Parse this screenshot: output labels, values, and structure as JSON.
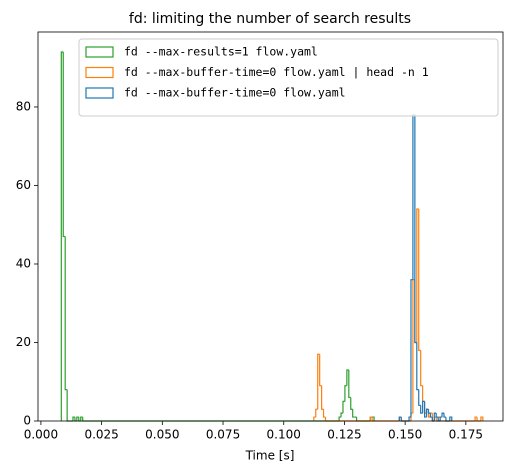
{
  "chart_data": {
    "type": "histogram",
    "title": "fd: limiting the number of search results",
    "xlabel": "Time [s]",
    "xlim": [
      -0.0012,
      0.1903
    ],
    "ylim": [
      0,
      99.1
    ],
    "xticks": [
      {
        "value": 0,
        "label": "0.000"
      },
      {
        "value": 0.025,
        "label": "0.025"
      },
      {
        "value": 0.05,
        "label": "0.050"
      },
      {
        "value": 0.075,
        "label": "0.075"
      },
      {
        "value": 0.1,
        "label": "0.100"
      },
      {
        "value": 0.125,
        "label": "0.125"
      },
      {
        "value": 0.15,
        "label": "0.150"
      },
      {
        "value": 0.175,
        "label": "0.175"
      }
    ],
    "yticks": [
      0,
      20,
      40,
      60,
      80
    ],
    "legend": "upper right",
    "series": [
      {
        "name": "fd --max-results=1 flow.yaml",
        "color": "#2ca02c",
        "bins": [
          0.0084,
          0.0092,
          0.01,
          0.0108,
          0.0116,
          0.0124,
          0.0132,
          0.014,
          0.0148,
          0.0156,
          0.0164,
          0.0172,
          0.1228,
          0.1236,
          0.1244,
          0.1252,
          0.126,
          0.1268,
          0.1276,
          0.1284,
          0.1292,
          0.13,
          0.1356,
          0.1364,
          0.1372
        ],
        "values": [
          94,
          47,
          8,
          0,
          0,
          0,
          1,
          0,
          1,
          0,
          1,
          0,
          1,
          2,
          5,
          9,
          13,
          6,
          3,
          1,
          1,
          0,
          1,
          1
        ]
      },
      {
        "name": "fd --max-buffer-time=0 flow.yaml | head -n 1",
        "color": "#ff7f0e",
        "bins": [
          0.1124,
          0.1132,
          0.114,
          0.1148,
          0.1156,
          0.1164,
          0.1172,
          0.1356,
          0.1364,
          0.1476,
          0.1484,
          0.1524,
          0.1532,
          0.154,
          0.1548,
          0.1556,
          0.1564,
          0.1572,
          0.158,
          0.1588,
          0.1596,
          0.1604,
          0.1612,
          0.162,
          0.1628,
          0.1636,
          0.1644,
          0.1788,
          0.1796,
          0.1812,
          0.182
        ],
        "values": [
          1,
          3,
          17,
          9,
          3,
          1,
          0,
          1,
          0,
          1,
          0,
          2,
          36,
          20,
          54,
          18,
          9,
          5,
          2,
          3,
          1,
          2,
          0,
          1,
          0,
          1,
          0,
          1,
          0,
          1
        ]
      },
      {
        "name": "fd --max-buffer-time=0 flow.yaml",
        "color": "#1f77b4",
        "bins": [
          0.1476,
          0.1484,
          0.1516,
          0.1524,
          0.1532,
          0.154,
          0.1548,
          0.1556,
          0.1564,
          0.1572,
          0.158,
          0.1588,
          0.1596,
          0.1604,
          0.1612,
          0.162,
          0.1628,
          0.1636,
          0.1644,
          0.1652,
          0.166,
          0.1668,
          0.1676,
          0.1684,
          0.1692
        ],
        "values": [
          1,
          0,
          1,
          36,
          78,
          20,
          8,
          4,
          2,
          5,
          1,
          3,
          2,
          1,
          0,
          2,
          1,
          0,
          1,
          2,
          1,
          0,
          0,
          1
        ]
      }
    ]
  }
}
